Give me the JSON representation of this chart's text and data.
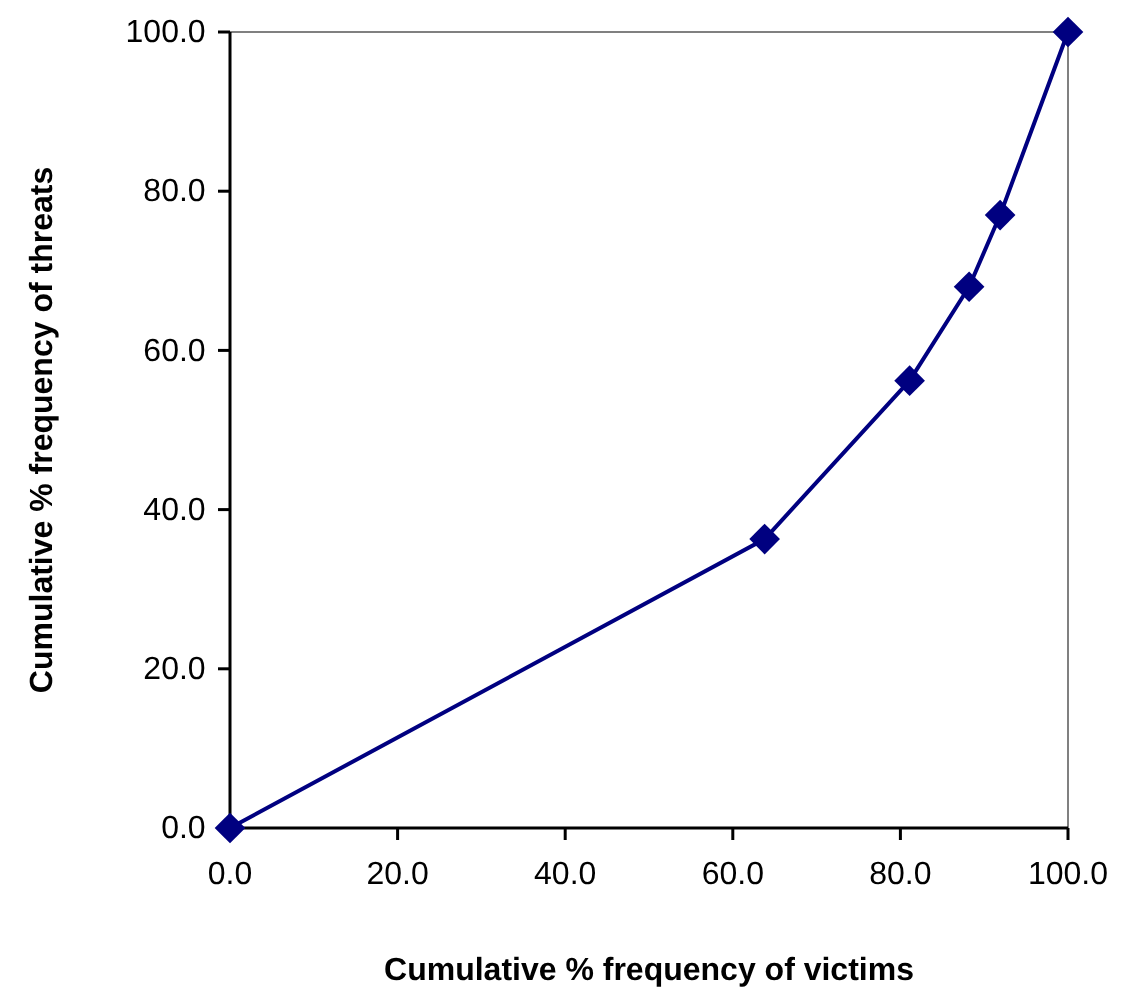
{
  "chart_data": {
    "type": "line",
    "xlabel": "Cumulative % frequency of victims",
    "ylabel": "Cumulative % frequency of threats",
    "x": [
      0,
      63.8,
      81.1,
      88.2,
      91.9,
      100
    ],
    "series": [
      {
        "color": "#000080",
        "values": [
          0,
          36.3,
          56.2,
          68.0,
          77.0,
          100
        ]
      }
    ],
    "xlim": [
      0,
      100
    ],
    "ylim": [
      0,
      100
    ],
    "xticks": [
      {
        "value": 0,
        "label": "0.0"
      },
      {
        "value": 20,
        "label": "20.0"
      },
      {
        "value": 40,
        "label": "40.0"
      },
      {
        "value": 60,
        "label": "60.0"
      },
      {
        "value": 80,
        "label": "80.0"
      },
      {
        "value": 100,
        "label": "100.0"
      }
    ],
    "yticks": [
      {
        "value": 0,
        "label": "0.0"
      },
      {
        "value": 20,
        "label": "20.0"
      },
      {
        "value": 40,
        "label": "40.0"
      },
      {
        "value": 60,
        "label": "60.0"
      },
      {
        "value": 80,
        "label": "80.0"
      },
      {
        "value": 100,
        "label": "100.0"
      }
    ],
    "marker": "diamond",
    "line_style": "solid",
    "grid": false
  }
}
